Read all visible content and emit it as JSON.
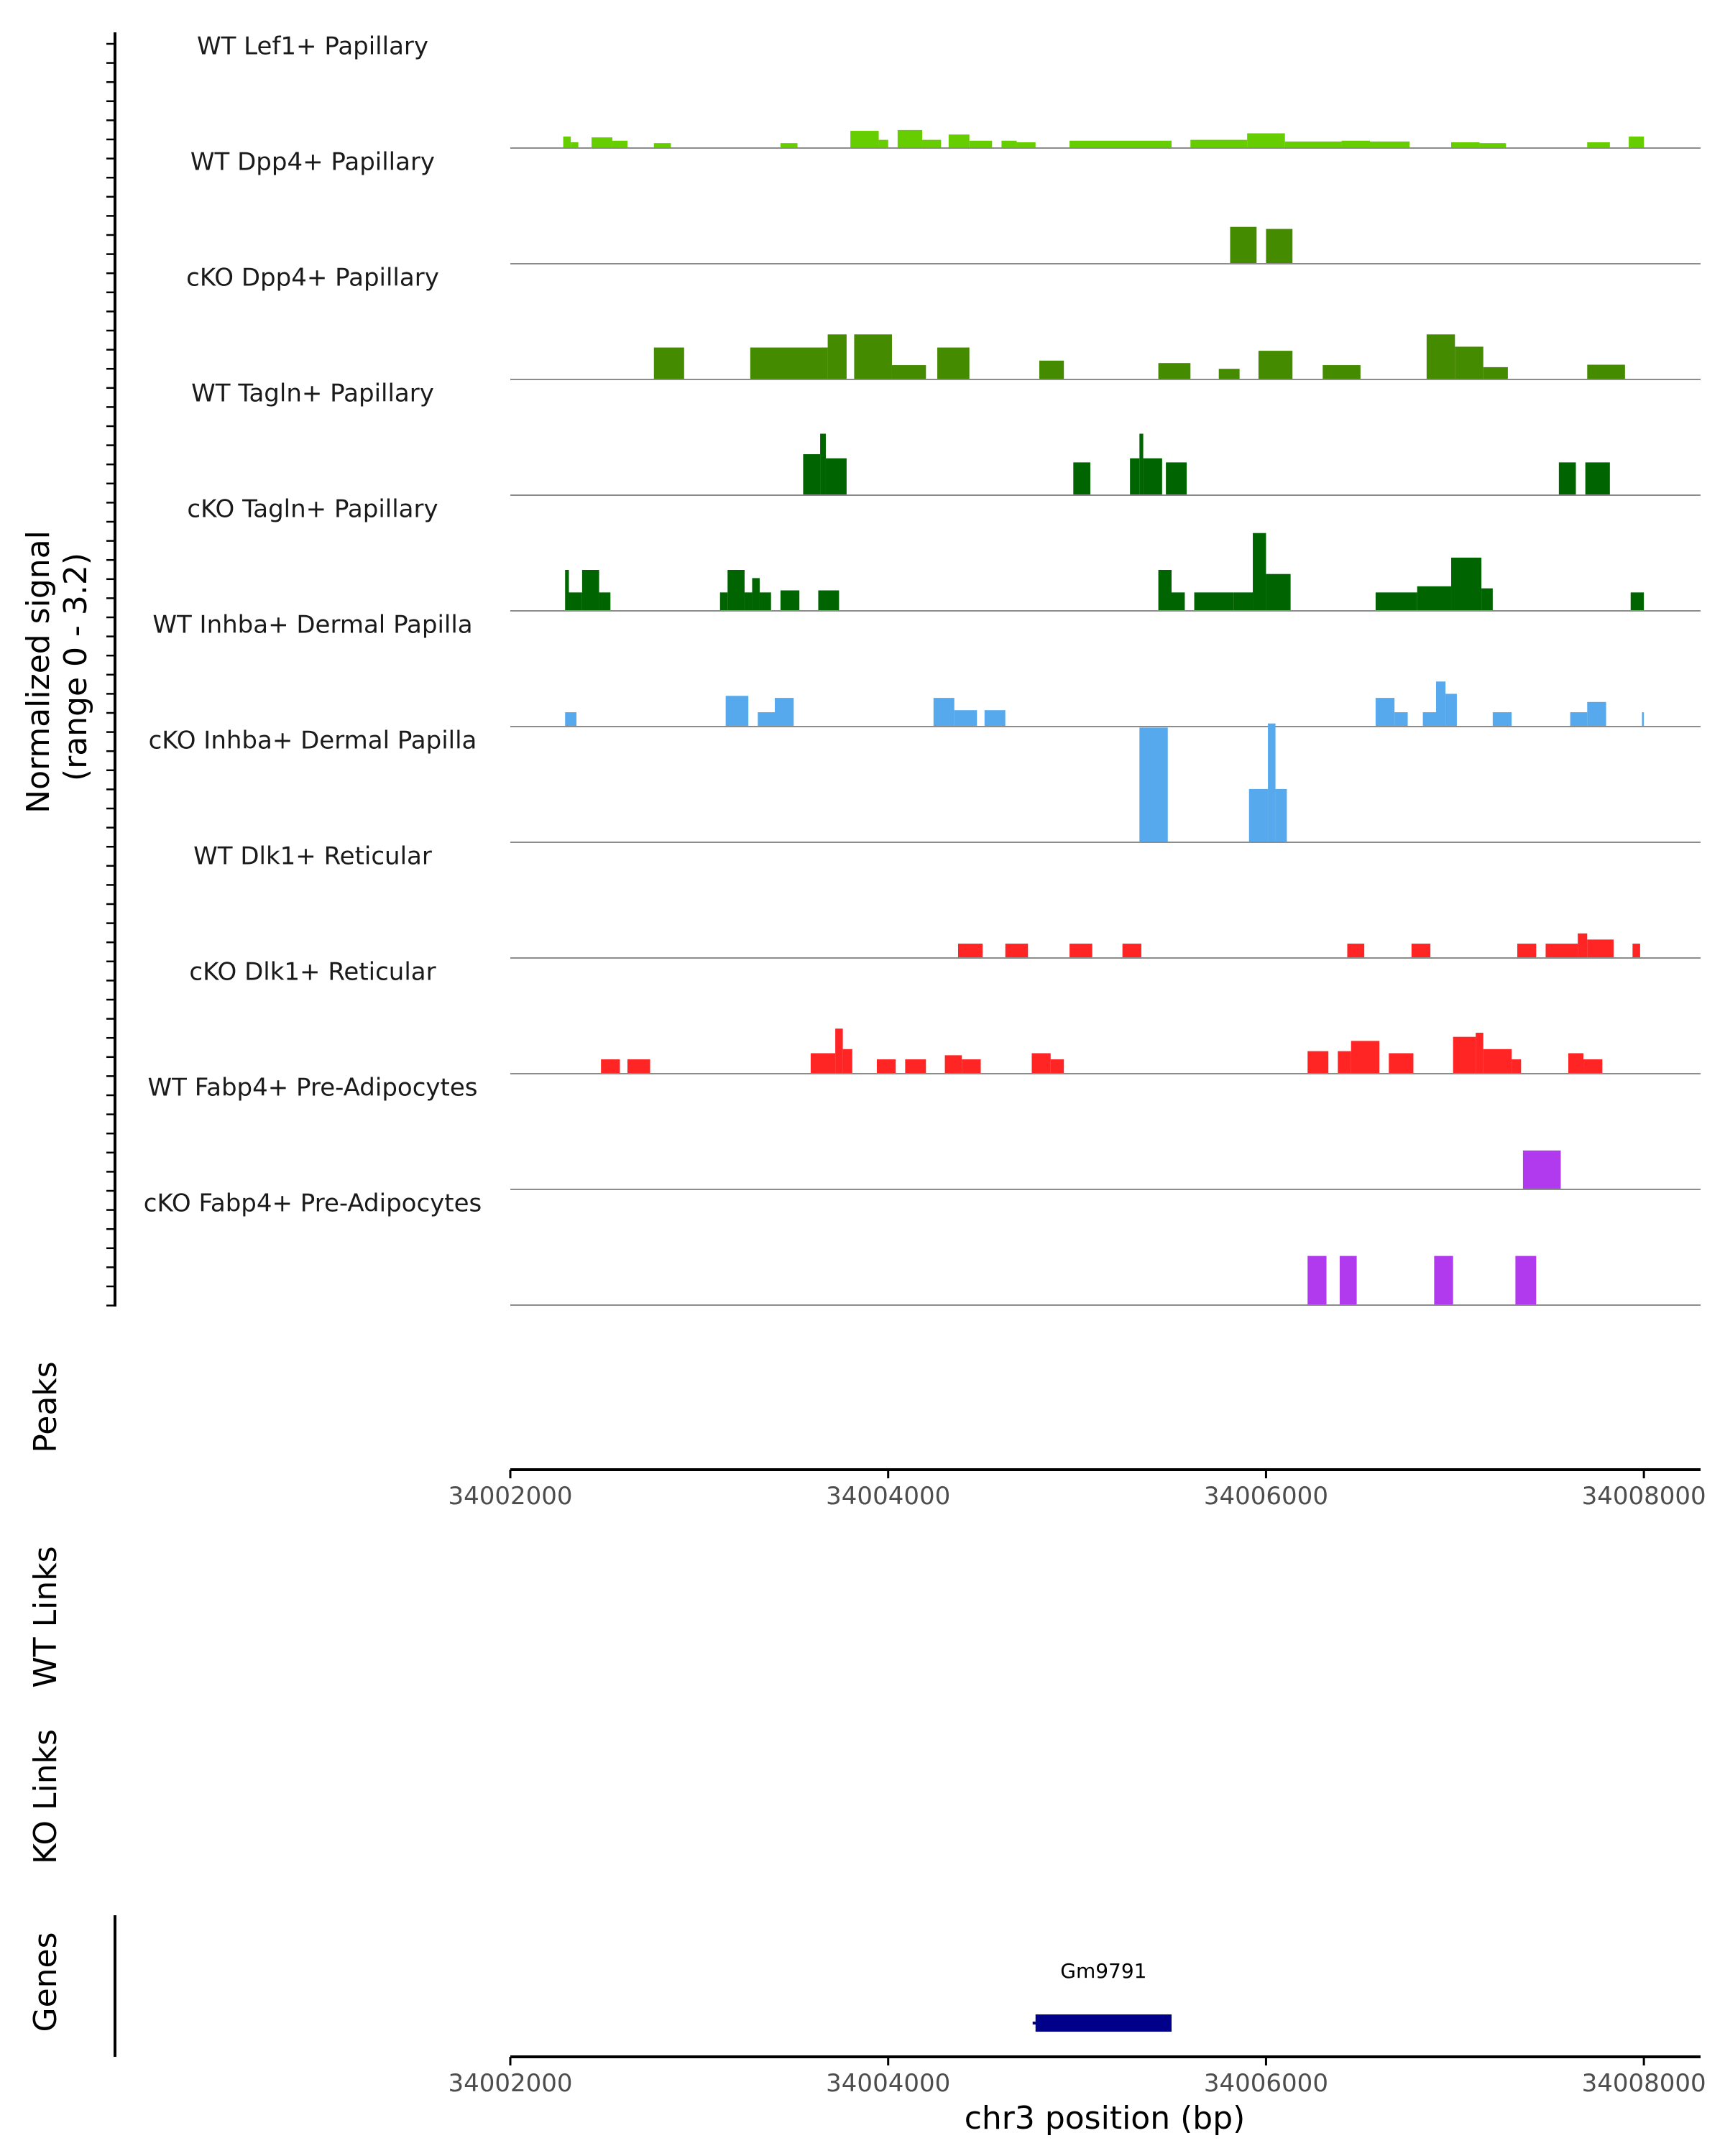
{
  "chart_data": {
    "type": "area",
    "title": "",
    "ylabel": "Normalized signal (range 0 - 3.2)",
    "ylabel_lines": [
      "Normalized signal",
      "(range 0 - 3.2)"
    ],
    "y_range": [
      0,
      3.2
    ],
    "chromosome": "chr3",
    "xlim": [
      34002000,
      34008300
    ],
    "xticks": [
      34002000,
      34004000,
      34006000,
      34008000
    ],
    "xtick_labels": [
      "34002000",
      "34004000",
      "34006000",
      "34008000"
    ],
    "xlabel": "chr3 position (bp)",
    "panels": [
      {
        "name": "Peaks",
        "label": "Peaks"
      },
      {
        "name": "WT Links",
        "label": "WT Links"
      },
      {
        "name": "KO Links",
        "label": "KO Links"
      },
      {
        "name": "Genes",
        "label": "Genes"
      }
    ],
    "tracks": [
      {
        "name": "WT Lef1+ Papillary",
        "color": "#66CD00",
        "peaks": [
          [
            34002280,
            34002320,
            0.28
          ],
          [
            34002320,
            34002360,
            0.14
          ],
          [
            34002430,
            34002540,
            0.26
          ],
          [
            34002540,
            34002620,
            0.18
          ],
          [
            34002760,
            34002850,
            0.12
          ],
          [
            34003430,
            34003520,
            0.12
          ],
          [
            34003800,
            34003950,
            0.42
          ],
          [
            34003950,
            34004000,
            0.2
          ],
          [
            34004050,
            34004180,
            0.44
          ],
          [
            34004180,
            34004280,
            0.2
          ],
          [
            34004320,
            34004430,
            0.33
          ],
          [
            34004430,
            34004550,
            0.18
          ],
          [
            34004600,
            34004680,
            0.18
          ],
          [
            34004680,
            34004780,
            0.14
          ],
          [
            34004960,
            34005500,
            0.18
          ],
          [
            34005600,
            34005900,
            0.2
          ],
          [
            34005900,
            34006100,
            0.36
          ],
          [
            34006100,
            34006200,
            0.16
          ],
          [
            34006200,
            34006400,
            0.16
          ],
          [
            34006400,
            34006550,
            0.18
          ],
          [
            34006550,
            34006760,
            0.16
          ],
          [
            34006980,
            34007130,
            0.14
          ],
          [
            34007130,
            34007270,
            0.12
          ],
          [
            34007700,
            34007820,
            0.14
          ],
          [
            34007920,
            34008000,
            0.28
          ]
        ]
      },
      {
        "name": "WT Dpp4+ Papillary",
        "color": "#458B00",
        "peaks": [
          [
            34005810,
            34005950,
            0.9
          ],
          [
            34006000,
            34006140,
            0.85
          ]
        ]
      },
      {
        "name": "cKO Dpp4+ Papillary",
        "color": "#458B00",
        "peaks": [
          [
            34002760,
            34002920,
            0.78
          ],
          [
            34003270,
            34003680,
            0.78
          ],
          [
            34003680,
            34003780,
            1.1
          ],
          [
            34003820,
            34004020,
            1.1
          ],
          [
            34004020,
            34004200,
            0.35
          ],
          [
            34004260,
            34004430,
            0.78
          ],
          [
            34004800,
            34004930,
            0.46
          ],
          [
            34005430,
            34005600,
            0.4
          ],
          [
            34005750,
            34005860,
            0.26
          ],
          [
            34005960,
            34006140,
            0.7
          ],
          [
            34006300,
            34006500,
            0.35
          ],
          [
            34006850,
            34007000,
            1.1
          ],
          [
            34007000,
            34007150,
            0.8
          ],
          [
            34007150,
            34007280,
            0.3
          ],
          [
            34007700,
            34007900,
            0.36
          ]
        ]
      },
      {
        "name": "WT Tagln+ Papillary",
        "color": "#006400",
        "peaks": [
          [
            34003550,
            34003640,
            1.0
          ],
          [
            34003640,
            34003670,
            1.5
          ],
          [
            34003670,
            34003780,
            0.9
          ],
          [
            34004980,
            34005070,
            0.8
          ],
          [
            34005280,
            34005330,
            0.9
          ],
          [
            34005330,
            34005350,
            1.5
          ],
          [
            34005350,
            34005450,
            0.9
          ],
          [
            34005470,
            34005580,
            0.8
          ],
          [
            34007550,
            34007640,
            0.8
          ],
          [
            34007690,
            34007820,
            0.8
          ]
        ]
      },
      {
        "name": "cKO Tagln+ Papillary",
        "color": "#006400",
        "peaks": [
          [
            34002290,
            34002310,
            1.0
          ],
          [
            34002310,
            34002380,
            0.45
          ],
          [
            34002380,
            34002470,
            1.0
          ],
          [
            34002470,
            34002530,
            0.45
          ],
          [
            34003110,
            34003150,
            0.45
          ],
          [
            34003150,
            34003240,
            1.0
          ],
          [
            34003240,
            34003280,
            0.45
          ],
          [
            34003280,
            34003320,
            0.8
          ],
          [
            34003320,
            34003380,
            0.45
          ],
          [
            34003430,
            34003530,
            0.5
          ],
          [
            34003630,
            34003740,
            0.5
          ],
          [
            34005430,
            34005500,
            1.0
          ],
          [
            34005500,
            34005570,
            0.45
          ],
          [
            34005620,
            34005830,
            0.45
          ],
          [
            34005830,
            34005930,
            0.45
          ],
          [
            34005930,
            34006000,
            1.9
          ],
          [
            34006000,
            34006130,
            0.9
          ],
          [
            34006580,
            34006800,
            0.45
          ],
          [
            34006800,
            34006980,
            0.6
          ],
          [
            34006980,
            34007140,
            1.3
          ],
          [
            34007140,
            34007200,
            0.55
          ],
          [
            34007930,
            34008000,
            0.45
          ]
        ]
      },
      {
        "name": "WT Inhba+ Dermal Papilla",
        "color": "#56A9EC",
        "peaks": [
          [
            34002290,
            34002350,
            0.35
          ],
          [
            34003140,
            34003260,
            0.75
          ],
          [
            34003310,
            34003400,
            0.35
          ],
          [
            34003400,
            34003500,
            0.7
          ],
          [
            34004240,
            34004350,
            0.7
          ],
          [
            34004350,
            34004470,
            0.4
          ],
          [
            34004510,
            34004620,
            0.4
          ],
          [
            34006580,
            34006680,
            0.7
          ],
          [
            34006680,
            34006750,
            0.35
          ],
          [
            34006830,
            34006900,
            0.35
          ],
          [
            34006900,
            34006950,
            1.1
          ],
          [
            34006950,
            34007010,
            0.8
          ],
          [
            34007200,
            34007300,
            0.35
          ],
          [
            34007610,
            34007700,
            0.35
          ],
          [
            34007700,
            34007800,
            0.6
          ],
          [
            34007990,
            34008000,
            0.35
          ]
        ]
      },
      {
        "name": "cKO Inhba+ Dermal Papilla",
        "color": "#56A9EC",
        "peaks": [
          [
            34005330,
            34005480,
            2.8
          ],
          [
            34005910,
            34006010,
            1.3
          ],
          [
            34006010,
            34006050,
            2.9
          ],
          [
            34006050,
            34006110,
            1.3
          ]
        ]
      },
      {
        "name": "WT Dlk1+ Reticular",
        "color": "#FF2525",
        "peaks": [
          [
            34004370,
            34004500,
            0.35
          ],
          [
            34004620,
            34004740,
            0.35
          ],
          [
            34004960,
            34005080,
            0.35
          ],
          [
            34005240,
            34005340,
            0.35
          ],
          [
            34006430,
            34006520,
            0.35
          ],
          [
            34006770,
            34006870,
            0.35
          ],
          [
            34007330,
            34007430,
            0.35
          ],
          [
            34007480,
            34007650,
            0.35
          ],
          [
            34007650,
            34007700,
            0.6
          ],
          [
            34007700,
            34007840,
            0.45
          ],
          [
            34007940,
            34007980,
            0.35
          ]
        ]
      },
      {
        "name": "cKO Dlk1+ Reticular",
        "color": "#FF2525",
        "peaks": [
          [
            34002480,
            34002580,
            0.35
          ],
          [
            34002620,
            34002740,
            0.35
          ],
          [
            34003590,
            34003720,
            0.5
          ],
          [
            34003720,
            34003760,
            1.1
          ],
          [
            34003760,
            34003810,
            0.6
          ],
          [
            34003940,
            34004040,
            0.35
          ],
          [
            34004090,
            34004200,
            0.35
          ],
          [
            34004300,
            34004390,
            0.45
          ],
          [
            34004390,
            34004490,
            0.35
          ],
          [
            34004760,
            34004860,
            0.5
          ],
          [
            34004860,
            34004930,
            0.35
          ],
          [
            34006220,
            34006330,
            0.55
          ],
          [
            34006380,
            34006450,
            0.55
          ],
          [
            34006450,
            34006600,
            0.8
          ],
          [
            34006650,
            34006780,
            0.5
          ],
          [
            34006990,
            34007110,
            0.9
          ],
          [
            34007110,
            34007150,
            1.0
          ],
          [
            34007150,
            34007300,
            0.6
          ],
          [
            34007300,
            34007350,
            0.35
          ],
          [
            34007600,
            34007680,
            0.5
          ],
          [
            34007680,
            34007780,
            0.35
          ]
        ]
      },
      {
        "name": "WT Fabp4+ Pre-Adipocytes",
        "color": "#B23AEE",
        "peaks": [
          [
            34007360,
            34007560,
            0.95
          ]
        ]
      },
      {
        "name": "cKO Fabp4+ Pre-Adipocytes",
        "color": "#B23AEE",
        "peaks": [
          [
            34006220,
            34006320,
            1.2
          ],
          [
            34006390,
            34006480,
            1.2
          ],
          [
            34006890,
            34006990,
            1.2
          ],
          [
            34007320,
            34007430,
            1.2
          ]
        ]
      }
    ],
    "genes": [
      {
        "name": "Gm9791",
        "start": 34004780,
        "end": 34005500,
        "color": "#00008B"
      }
    ]
  }
}
